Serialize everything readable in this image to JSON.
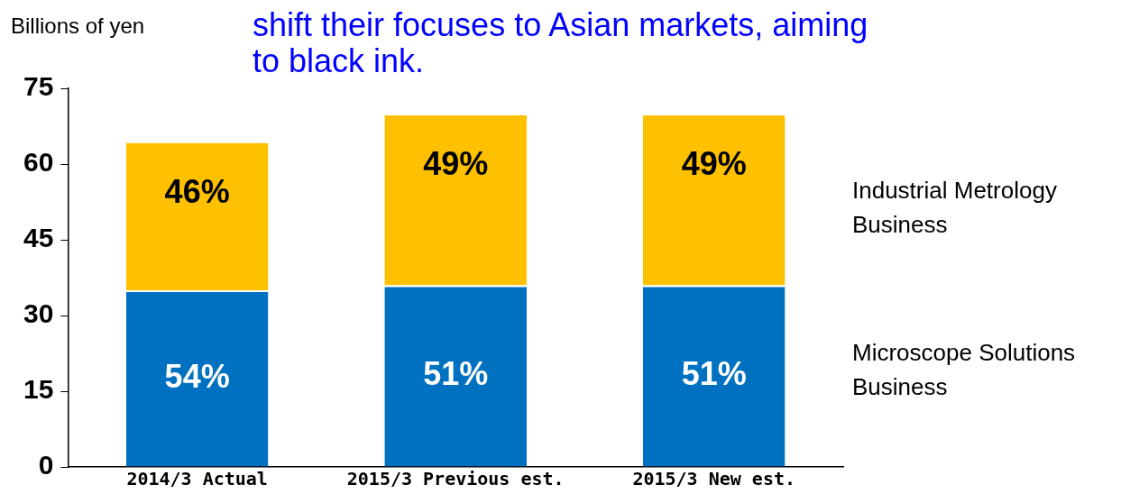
{
  "chart_data": {
    "type": "bar",
    "title": "shift their focuses to Asian markets, aiming to black ink.",
    "ylabel": "Billions of yen",
    "categories": [
      "2014/3 Actual",
      "2015/3 Previous est.",
      "2015/3 New est."
    ],
    "stacked": true,
    "ylim": [
      0,
      75
    ],
    "yticks": [
      0,
      15,
      30,
      45,
      60,
      75
    ],
    "grid": false,
    "series": [
      {
        "name": "Microscope Solutions Business",
        "color": "#0070c0",
        "values": [
          35,
          36,
          36
        ]
      },
      {
        "name": "Industrial Metrology Business",
        "color": "#ffc000",
        "values": [
          29.5,
          34,
          34
        ]
      }
    ],
    "annotations": [
      "54%",
      "51%",
      "51%",
      "46%",
      "49%",
      "49%"
    ]
  }
}
